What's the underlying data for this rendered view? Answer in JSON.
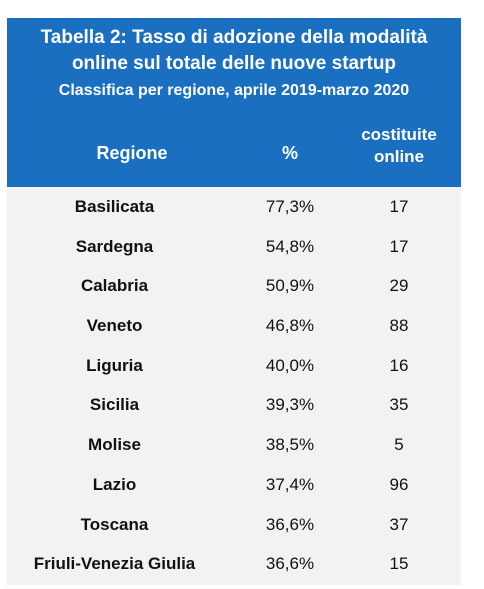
{
  "table": {
    "title_line1": "Tabella 2: Tasso di adozione della modalità",
    "title_line2": "online sul totale delle nuove startup",
    "subtitle": "Classifica per regione, aprile 2019-marzo 2020",
    "headers": {
      "region": "Regione",
      "percent": "%",
      "count_line1": "costituite",
      "count_line2": "online"
    },
    "rows": [
      {
        "region": "Basilicata",
        "percent": "77,3%",
        "count": "17"
      },
      {
        "region": "Sardegna",
        "percent": "54,8%",
        "count": "17"
      },
      {
        "region": "Calabria",
        "percent": "50,9%",
        "count": "29"
      },
      {
        "region": "Veneto",
        "percent": "46,8%",
        "count": "88"
      },
      {
        "region": "Liguria",
        "percent": "40,0%",
        "count": "16"
      },
      {
        "region": "Sicilia",
        "percent": "39,3%",
        "count": "35"
      },
      {
        "region": "Molise",
        "percent": "38,5%",
        "count": "5"
      },
      {
        "region": "Lazio",
        "percent": "37,4%",
        "count": "96"
      },
      {
        "region": "Toscana",
        "percent": "36,6%",
        "count": "37"
      },
      {
        "region": "Friuli-Venezia Giulia",
        "percent": "36,6%",
        "count": "15"
      }
    ],
    "colors": {
      "header_bg": "#1a6fc0",
      "body_bg": "#f2f2f2",
      "header_text": "#ffffff",
      "body_text": "#111111"
    }
  }
}
